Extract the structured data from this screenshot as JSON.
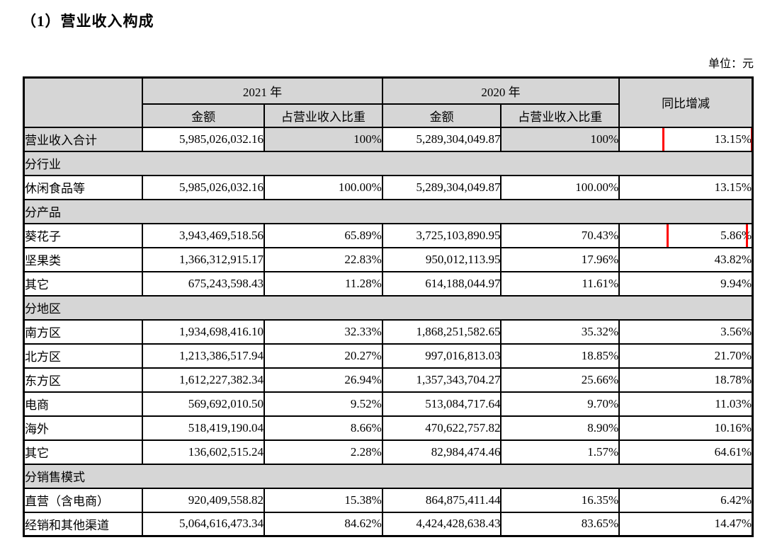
{
  "page": {
    "title": "（1）营业收入构成",
    "unit_label": "单位：元"
  },
  "table": {
    "header": {
      "year_2021": "2021 年",
      "year_2020": "2020 年",
      "amount": "金额",
      "ratio": "占营业收入比重",
      "yoy": "同比增减"
    },
    "rows": [
      {
        "type": "data",
        "label": "营业收入合计",
        "a2021": "5,985,026,032.16",
        "r2021": "100%",
        "a2020": "5,289,304,049.87",
        "r2020": "100%",
        "yoy": "13.15%",
        "shaded_cells": [
          "label",
          "r2021",
          "r2020"
        ],
        "highlight_yoy": true,
        "box": 1
      },
      {
        "type": "section",
        "label": "分行业"
      },
      {
        "type": "data",
        "label": "休闲食品等",
        "a2021": "5,985,026,032.16",
        "r2021": "100.00%",
        "a2020": "5,289,304,049.87",
        "r2020": "100.00%",
        "yoy": "13.15%"
      },
      {
        "type": "section",
        "label": "分产品"
      },
      {
        "type": "data",
        "label": "葵花子",
        "a2021": "3,943,469,518.56",
        "r2021": "65.89%",
        "a2020": "3,725,103,890.95",
        "r2020": "70.43%",
        "yoy": "5.86%",
        "highlight_yoy": true,
        "box": 2
      },
      {
        "type": "data",
        "label": "坚果类",
        "a2021": "1,366,312,915.17",
        "r2021": "22.83%",
        "a2020": "950,012,113.95",
        "r2020": "17.96%",
        "yoy": "43.82%"
      },
      {
        "type": "data",
        "label": "其它",
        "a2021": "675,243,598.43",
        "r2021": "11.28%",
        "a2020": "614,188,044.97",
        "r2020": "11.61%",
        "yoy": "9.94%"
      },
      {
        "type": "section",
        "label": "分地区"
      },
      {
        "type": "data",
        "label": "南方区",
        "a2021": "1,934,698,416.10",
        "r2021": "32.33%",
        "a2020": "1,868,251,582.65",
        "r2020": "35.32%",
        "yoy": "3.56%"
      },
      {
        "type": "data",
        "label": "北方区",
        "a2021": "1,213,386,517.94",
        "r2021": "20.27%",
        "a2020": "997,016,813.03",
        "r2020": "18.85%",
        "yoy": "21.70%"
      },
      {
        "type": "data",
        "label": "东方区",
        "a2021": "1,612,227,382.34",
        "r2021": "26.94%",
        "a2020": "1,357,343,704.27",
        "r2020": "25.66%",
        "yoy": "18.78%"
      },
      {
        "type": "data",
        "label": "电商",
        "a2021": "569,692,010.50",
        "r2021": "9.52%",
        "a2020": "513,084,717.64",
        "r2020": "9.70%",
        "yoy": "11.03%"
      },
      {
        "type": "data",
        "label": "海外",
        "a2021": "518,419,190.04",
        "r2021": "8.66%",
        "a2020": "470,622,757.82",
        "r2020": "8.90%",
        "yoy": "10.16%"
      },
      {
        "type": "data",
        "label": "其它",
        "a2021": "136,602,515.24",
        "r2021": "2.28%",
        "a2020": "82,984,474.46",
        "r2020": "1.57%",
        "yoy": "64.61%"
      },
      {
        "type": "section",
        "label": "分销售模式"
      },
      {
        "type": "data",
        "label": "直营（含电商）",
        "a2021": "920,409,558.82",
        "r2021": "15.38%",
        "a2020": "864,875,411.44",
        "r2020": "16.35%",
        "yoy": "6.42%"
      },
      {
        "type": "data",
        "label": "经销和其他渠道",
        "a2021": "5,064,616,473.34",
        "r2021": "84.62%",
        "a2020": "4,424,428,638.43",
        "r2020": "83.65%",
        "yoy": "14.47%"
      }
    ]
  },
  "annotations": {
    "highlight_color": "#ff0000",
    "highlighted_values": [
      "13.15%",
      "5.86%"
    ]
  }
}
